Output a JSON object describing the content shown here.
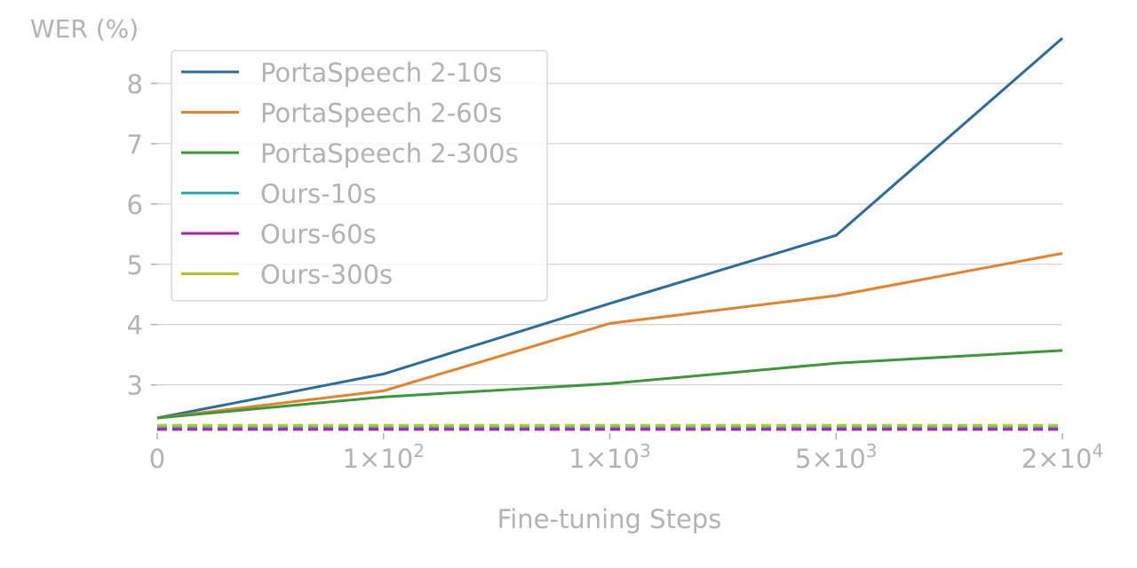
{
  "chart_data": {
    "type": "line",
    "title": "",
    "xlabel": "Fine-tuning Steps",
    "ylabel": "WER (%)",
    "x_tick_labels": [
      {
        "base": "0",
        "exp": ""
      },
      {
        "base": "1×10",
        "exp": "2"
      },
      {
        "base": "1×10",
        "exp": "3"
      },
      {
        "base": "5×10",
        "exp": "3"
      },
      {
        "base": "2×10",
        "exp": "4"
      }
    ],
    "x": [
      0,
      100,
      1000,
      5000,
      20000
    ],
    "y_ticks": [
      3,
      4,
      5,
      6,
      7,
      8
    ],
    "ylim": [
      2.2,
      8.75
    ],
    "grid": true,
    "legend_position": "upper-left",
    "series": [
      {
        "name": "PortaSpeech 2-10s",
        "color": "#2a6f9b",
        "dashed": false,
        "values": [
          2.45,
          3.18,
          4.35,
          5.48,
          8.75
        ]
      },
      {
        "name": "PortaSpeech 2-60s",
        "color": "#e8822a",
        "dashed": false,
        "values": [
          2.45,
          2.9,
          4.02,
          4.48,
          5.18
        ]
      },
      {
        "name": "PortaSpeech 2-300s",
        "color": "#3a9a3a",
        "dashed": false,
        "values": [
          2.45,
          2.8,
          3.02,
          3.36,
          3.57
        ]
      },
      {
        "name": "Ours-10s",
        "color": "#22b5b0",
        "dashed": true,
        "values": [
          2.3,
          2.3,
          2.3,
          2.3,
          2.3
        ]
      },
      {
        "name": "Ours-60s",
        "color": "#b01fb0",
        "dashed": true,
        "values": [
          2.26,
          2.26,
          2.26,
          2.26,
          2.26
        ]
      },
      {
        "name": "Ours-300s",
        "color": "#b8c41f",
        "dashed": true,
        "values": [
          2.33,
          2.33,
          2.33,
          2.33,
          2.33
        ]
      }
    ]
  }
}
